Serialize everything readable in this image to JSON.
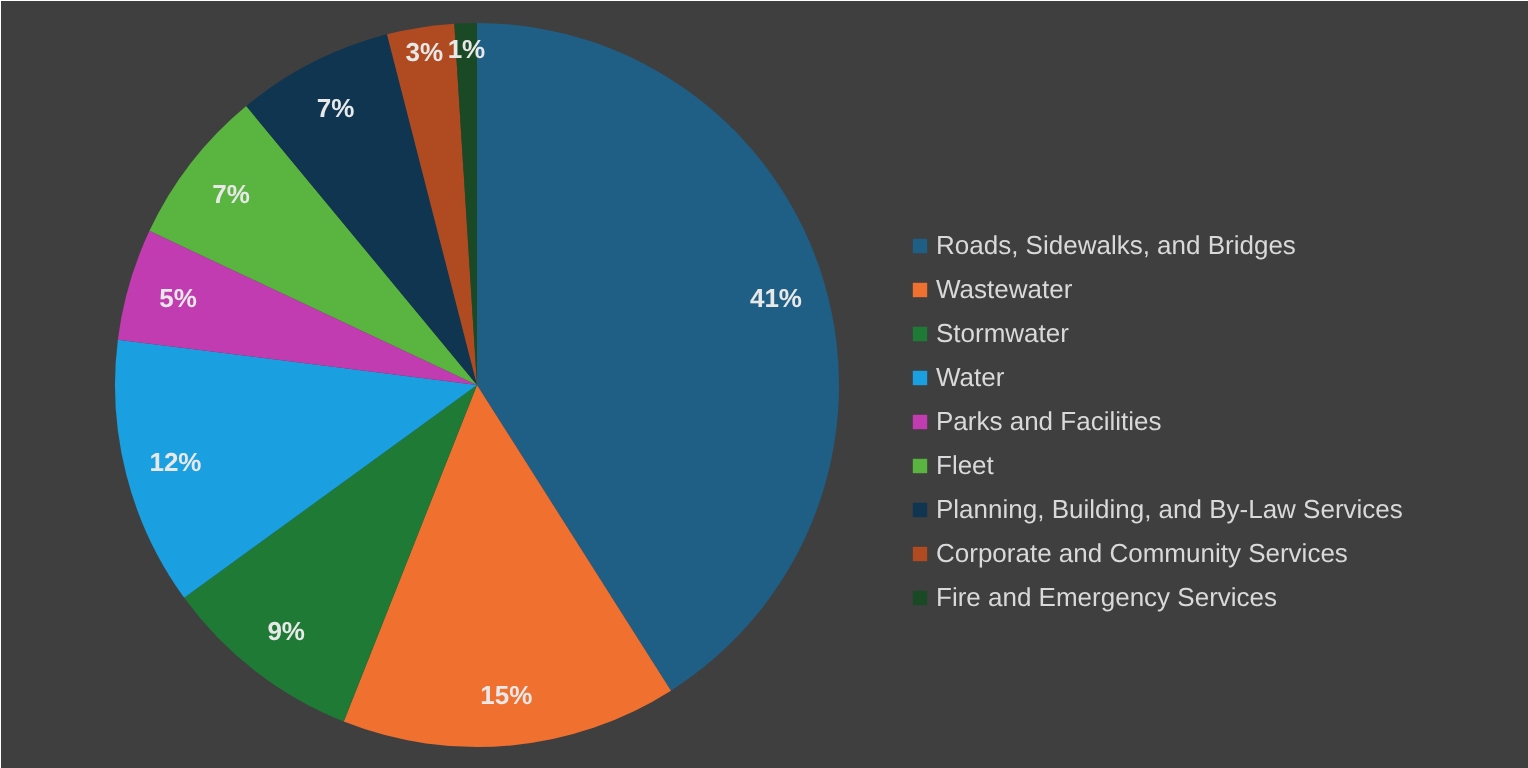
{
  "chart_data": {
    "type": "pie",
    "categories": [
      "Roads, Sidewalks, and Bridges",
      "Wastewater",
      "Stormwater",
      "Water",
      "Parks and Facilities",
      "Fleet",
      "Planning, Building, and By-Law Services",
      "Corporate and Community Services",
      "Fire and Emergency Services"
    ],
    "values": [
      41,
      15,
      9,
      12,
      5,
      7,
      7,
      3,
      1
    ],
    "colors": [
      "#1f5f85",
      "#f07030",
      "#1e7a35",
      "#1aa0e0",
      "#c03cb0",
      "#5ab540",
      "#0f3550",
      "#b04a20",
      "#1a4a25"
    ],
    "value_labels": [
      "41%",
      "15%",
      "9%",
      "12%",
      "5%",
      "7%",
      "7%",
      "3%",
      "1%"
    ],
    "legend": "right"
  }
}
